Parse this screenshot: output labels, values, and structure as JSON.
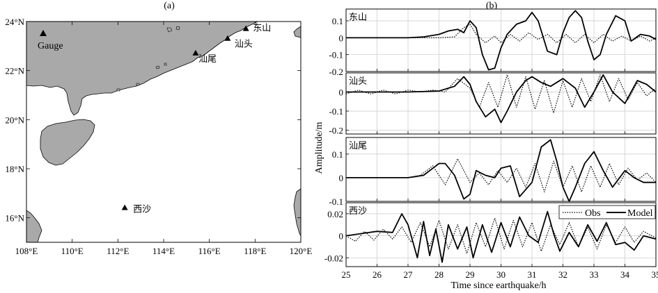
{
  "panel_a": {
    "label": "(a)",
    "x_ticks": [
      "108°E",
      "110°E",
      "112°E",
      "114°E",
      "116°E",
      "118°E",
      "120°E"
    ],
    "y_ticks": [
      "24°N",
      "22°N",
      "20°N",
      "18°N",
      "16°N"
    ],
    "legend_label": "Gauge",
    "stations": [
      {
        "name": "东山",
        "lon": 117.6,
        "lat": 23.7
      },
      {
        "name": "汕头",
        "lon": 116.8,
        "lat": 23.3
      },
      {
        "name": "汕尾",
        "lon": 115.4,
        "lat": 22.7
      },
      {
        "name": "西沙",
        "lon": 112.3,
        "lat": 16.4
      }
    ]
  },
  "panel_b": {
    "label": "(b)",
    "ylabel": "Amplitude/m",
    "xlabel": "Time since earthquake/h",
    "x_ticks": [
      "25",
      "26",
      "27",
      "28",
      "29",
      "30",
      "31",
      "32",
      "33",
      "34",
      "35"
    ],
    "legend": {
      "obs": "Obs",
      "model": "Model"
    },
    "subplots": [
      {
        "title": "东山",
        "y_ticks": [
          "0.1",
          "0",
          "-0.1",
          "-0.2"
        ]
      },
      {
        "title": "汕头",
        "y_ticks": [
          "0",
          "-0.1",
          "-0.2"
        ]
      },
      {
        "title": "汕尾",
        "y_ticks": [
          "0.1",
          "0",
          "-0.1"
        ]
      },
      {
        "title": "西沙",
        "y_ticks": [
          "0.02",
          "0",
          "-0.02"
        ]
      }
    ]
  },
  "chart_data": [
    {
      "type": "map",
      "title": "(a)",
      "xlim": [
        108,
        120
      ],
      "ylim": [
        15,
        24
      ],
      "points": [
        {
          "name": "东山",
          "lon": 117.6,
          "lat": 23.7
        },
        {
          "name": "汕头",
          "lon": 116.8,
          "lat": 23.3
        },
        {
          "name": "汕尾",
          "lon": 115.4,
          "lat": 22.7
        },
        {
          "name": "西沙",
          "lon": 112.3,
          "lat": 16.4
        }
      ],
      "legend": [
        "Gauge"
      ]
    },
    {
      "type": "line",
      "title": "(b)",
      "xlabel": "Time since earthquake/h",
      "ylabel": "Amplitude/m",
      "xlim": [
        25,
        35
      ],
      "legend": [
        "Obs",
        "Model"
      ],
      "legend_position": "top-right of bottom subplot",
      "grid": true,
      "subplots": [
        {
          "station": "东山",
          "ylim": [
            -0.2,
            0.17
          ],
          "series": [
            {
              "name": "Model",
              "style": "solid",
              "x": [
                25,
                26,
                27,
                27.5,
                28,
                28.3,
                28.6,
                28.8,
                29,
                29.2,
                29.4,
                29.6,
                29.8,
                30,
                30.2,
                30.5,
                30.8,
                31,
                31.2,
                31.5,
                31.8,
                32,
                32.2,
                32.4,
                32.6,
                32.8,
                33,
                33.2,
                33.4,
                33.7,
                34,
                34.2,
                34.5,
                34.8,
                35
              ],
              "y": [
                0,
                0,
                0,
                0.005,
                0.02,
                0.04,
                0.05,
                0.03,
                0.1,
                0.06,
                -0.1,
                -0.19,
                -0.18,
                -0.06,
                0.02,
                0.08,
                0.1,
                0.15,
                0.1,
                -0.08,
                -0.1,
                0.03,
                0.12,
                0.16,
                0.12,
                -0.02,
                -0.13,
                -0.1,
                0.02,
                0.13,
                0.1,
                -0.02,
                0.02,
                0.01,
                -0.01
              ]
            },
            {
              "name": "Obs",
              "style": "dotted",
              "x": [
                25,
                26,
                27,
                28,
                28.5,
                28.8,
                29,
                29.2,
                29.5,
                29.8,
                30,
                30.3,
                30.6,
                30.9,
                31.2,
                31.5,
                31.8,
                32.1,
                32.4,
                32.7,
                33,
                33.3,
                33.6,
                33.9,
                34.2,
                34.5,
                34.8,
                35
              ],
              "y": [
                0,
                0,
                0,
                0,
                0.005,
                0.06,
                0.08,
                0.02,
                -0.03,
                0.01,
                -0.03,
                0.02,
                -0.02,
                0.03,
                -0.01,
                0.02,
                -0.03,
                0.02,
                -0.03,
                0.02,
                -0.03,
                0.02,
                -0.02,
                0.01,
                -0.02,
                0.01,
                -0.02,
                0
              ]
            }
          ]
        },
        {
          "station": "汕头",
          "ylim": [
            -0.22,
            0.1
          ],
          "series": [
            {
              "name": "Model",
              "style": "solid",
              "x": [
                25,
                26,
                27,
                28,
                28.5,
                28.8,
                29,
                29.2,
                29.5,
                29.8,
                30,
                30.2,
                30.5,
                30.8,
                31,
                31.3,
                31.6,
                32,
                32.4,
                32.7,
                33,
                33.3,
                33.6,
                34,
                34.4,
                34.7,
                35
              ],
              "y": [
                0,
                0,
                0,
                0.005,
                0.03,
                0.08,
                0.04,
                -0.05,
                -0.13,
                -0.09,
                -0.16,
                -0.1,
                0.0,
                0.06,
                0.08,
                0.05,
                0.03,
                0.07,
                0.02,
                -0.08,
                0.0,
                0.09,
                0.0,
                -0.06,
                0.06,
                0.04,
                0.0
              ]
            },
            {
              "name": "Obs",
              "style": "dotted",
              "x": [
                25,
                25.4,
                25.8,
                26.2,
                26.6,
                27,
                27.4,
                27.8,
                28.2,
                28.6,
                29,
                29.3,
                29.6,
                29.9,
                30.2,
                30.5,
                30.8,
                31.1,
                31.4,
                31.7,
                32,
                32.3,
                32.6,
                32.9,
                33.2,
                33.5,
                33.8,
                34.1,
                34.4,
                34.7,
                35
              ],
              "y": [
                -0.01,
                0.01,
                -0.01,
                0.01,
                -0.01,
                0.01,
                0.0,
                0.01,
                0.0,
                0.07,
                0.02,
                -0.08,
                0.05,
                -0.08,
                0.09,
                -0.08,
                0.08,
                -0.09,
                0.06,
                -0.11,
                0.06,
                -0.08,
                0.07,
                -0.05,
                0.09,
                -0.05,
                0.07,
                -0.04,
                0.05,
                -0.02,
                0.02
              ]
            }
          ]
        },
        {
          "station": "汕尾",
          "ylim": [
            -0.1,
            0.17
          ],
          "series": [
            {
              "name": "Model",
              "style": "solid",
              "x": [
                25,
                26,
                27,
                27.5,
                27.8,
                28,
                28.2,
                28.5,
                28.8,
                29,
                29.2,
                29.5,
                29.8,
                30,
                30.3,
                30.6,
                31,
                31.3,
                31.6,
                31.8,
                32,
                32.2,
                32.4,
                32.7,
                33,
                33.3,
                33.6,
                34,
                34.3,
                34.6,
                35
              ],
              "y": [
                0,
                0,
                0,
                0.01,
                0.04,
                0.06,
                0.06,
                0.01,
                -0.09,
                -0.07,
                0.03,
                0.01,
                0.0,
                0.04,
                0.05,
                -0.08,
                -0.02,
                0.13,
                0.16,
                0.07,
                -0.04,
                -0.1,
                -0.04,
                0.06,
                0.11,
                0.03,
                -0.04,
                0.03,
                0.0,
                -0.02,
                -0.02
              ]
            },
            {
              "name": "Obs",
              "style": "dotted",
              "x": [
                25,
                26,
                27,
                27.4,
                27.8,
                28.2,
                28.6,
                29,
                29.3,
                29.6,
                29.9,
                30.2,
                30.5,
                30.8,
                31.1,
                31.4,
                31.7,
                32,
                32.3,
                32.6,
                32.9,
                33.2,
                33.5,
                33.8,
                34.1,
                34.4,
                34.7,
                35
              ],
              "y": [
                0,
                0,
                0,
                0.01,
                0.05,
                -0.03,
                0.08,
                -0.02,
                0.02,
                -0.03,
                0.03,
                -0.02,
                0.04,
                -0.04,
                0.06,
                -0.06,
                0.07,
                -0.04,
                0.05,
                -0.06,
                0.05,
                -0.04,
                0.06,
                -0.03,
                0.04,
                -0.01,
                0.02,
                -0.02
              ]
            }
          ]
        },
        {
          "station": "西沙",
          "ylim": [
            -0.028,
            0.03
          ],
          "series": [
            {
              "name": "Model",
              "style": "solid",
              "x": [
                25,
                25.5,
                26,
                26.5,
                26.8,
                27,
                27.3,
                27.5,
                27.7,
                27.9,
                28.1,
                28.3,
                28.6,
                28.9,
                29.1,
                29.4,
                29.7,
                30,
                30.3,
                30.6,
                30.9,
                31.2,
                31.5,
                31.7,
                31.9,
                32.2,
                32.5,
                32.8,
                33.1,
                33.4,
                33.7,
                34,
                34.3,
                34.6,
                35
              ],
              "y": [
                0,
                0.002,
                0.004,
                0.003,
                0.02,
                0.01,
                -0.02,
                0.013,
                -0.018,
                0.006,
                -0.024,
                0.01,
                -0.012,
                0.008,
                -0.02,
                0.01,
                -0.015,
                0.012,
                -0.01,
                0.017,
                0.0,
                -0.006,
                0.022,
                0.002,
                -0.014,
                0.003,
                -0.01,
                0.01,
                -0.005,
                0.012,
                -0.008,
                -0.006,
                -0.013,
                0.0,
                -0.003
              ]
            },
            {
              "name": "Obs",
              "style": "dotted",
              "x": [
                25,
                25.3,
                25.6,
                25.9,
                26.2,
                26.5,
                26.8,
                27.1,
                27.4,
                27.7,
                28,
                28.3,
                28.6,
                28.9,
                29.2,
                29.5,
                29.8,
                30.1,
                30.4,
                30.7,
                31,
                31.3,
                31.6,
                31.9,
                32.2,
                32.5,
                32.8,
                33.1,
                33.4,
                33.7,
                34,
                34.3,
                34.6,
                35
              ],
              "y": [
                0,
                -0.005,
                0.004,
                -0.004,
                0.006,
                -0.003,
                0.008,
                -0.006,
                0.012,
                -0.01,
                0.014,
                -0.012,
                0.01,
                -0.016,
                0.012,
                -0.01,
                0.016,
                -0.012,
                0.014,
                -0.01,
                0.012,
                -0.014,
                0.01,
                -0.008,
                0.012,
                -0.01,
                0.008,
                -0.012,
                0.01,
                -0.006,
                0.008,
                -0.006,
                0.004,
                -0.002
              ]
            }
          ]
        }
      ]
    }
  ]
}
